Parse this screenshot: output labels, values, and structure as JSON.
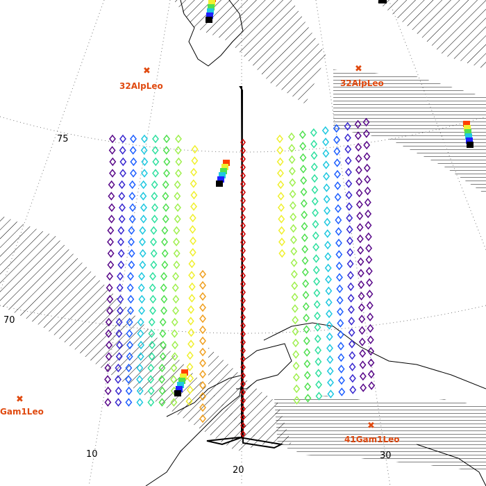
{
  "star_labels": [
    "32AlpLeo",
    "32AlpLeo",
    "Gam1Leo",
    "41Gam1Leo"
  ],
  "grid_labels": [
    "75",
    "70",
    "10",
    "20",
    "30"
  ]
}
